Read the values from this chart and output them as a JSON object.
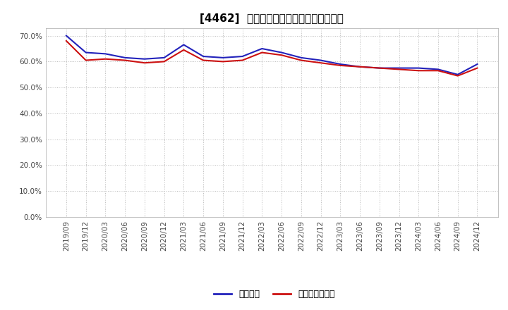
{
  "title": "[4462]  固定比率、固定長期適合率の推移",
  "blue_label": "固定比率",
  "red_label": "固定長期適合率",
  "x_labels": [
    "2019/09",
    "2019/12",
    "2020/03",
    "2020/06",
    "2020/09",
    "2020/12",
    "2021/03",
    "2021/06",
    "2021/09",
    "2021/12",
    "2022/03",
    "2022/06",
    "2022/09",
    "2022/12",
    "2023/03",
    "2023/06",
    "2023/09",
    "2023/12",
    "2024/03",
    "2024/06",
    "2024/09",
    "2024/12"
  ],
  "blue_values": [
    70.0,
    63.5,
    63.0,
    61.5,
    61.0,
    61.5,
    66.5,
    62.0,
    61.5,
    62.0,
    65.0,
    63.5,
    61.5,
    60.5,
    59.0,
    58.0,
    57.5,
    57.5,
    57.5,
    57.0,
    55.0,
    59.0
  ],
  "red_values": [
    68.0,
    60.5,
    61.0,
    60.5,
    59.5,
    60.0,
    64.5,
    60.5,
    60.0,
    60.5,
    63.5,
    62.5,
    60.5,
    59.5,
    58.5,
    58.0,
    57.5,
    57.0,
    56.5,
    56.5,
    54.5,
    57.5
  ],
  "ylim": [
    0,
    73
  ],
  "yticks": [
    0,
    10,
    20,
    30,
    40,
    50,
    60,
    70
  ],
  "blue_color": "#2222bb",
  "red_color": "#cc1111",
  "grid_color": "#bbbbbb",
  "bg_color": "#ffffff",
  "title_fontsize": 11,
  "axis_fontsize": 7.5,
  "legend_fontsize": 9
}
